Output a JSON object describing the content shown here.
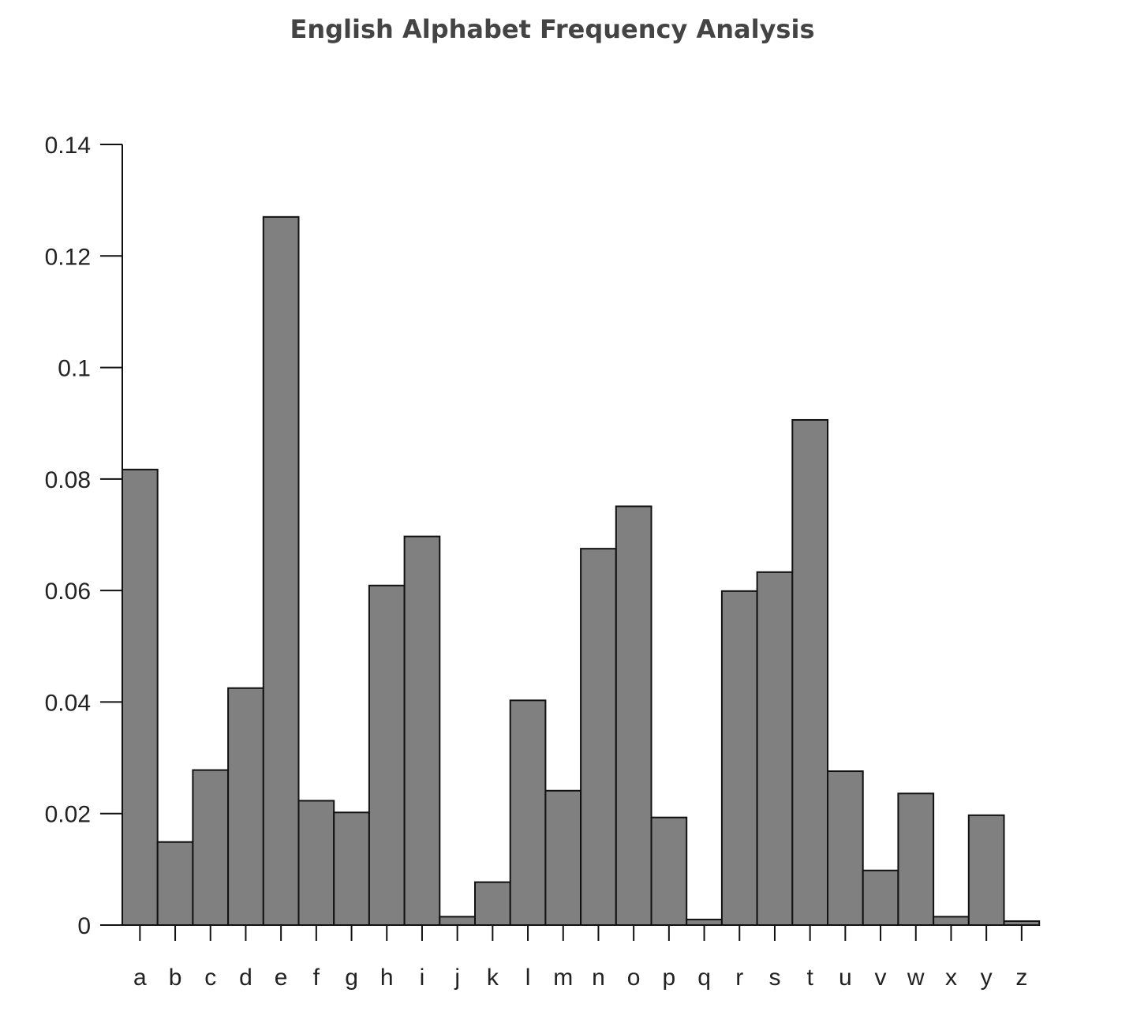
{
  "chart_data": {
    "type": "bar",
    "title": "English Alphabet Frequency Analysis",
    "xlabel": "",
    "ylabel": "",
    "categories": [
      "a",
      "b",
      "c",
      "d",
      "e",
      "f",
      "g",
      "h",
      "i",
      "j",
      "k",
      "l",
      "m",
      "n",
      "o",
      "p",
      "q",
      "r",
      "s",
      "t",
      "u",
      "v",
      "w",
      "x",
      "y",
      "z"
    ],
    "values": [
      0.0817,
      0.0149,
      0.0278,
      0.0425,
      0.127,
      0.0223,
      0.0202,
      0.0609,
      0.0697,
      0.0015,
      0.0077,
      0.0403,
      0.0241,
      0.0675,
      0.0751,
      0.0193,
      0.001,
      0.0599,
      0.0633,
      0.0906,
      0.0276,
      0.0098,
      0.0236,
      0.0015,
      0.0197,
      0.0007
    ],
    "ylim": [
      0,
      0.14
    ],
    "yticks": [
      "0",
      "0.02",
      "0.04",
      "0.06",
      "0.08",
      "0.1",
      "0.12",
      "0.14"
    ],
    "grid": false,
    "colors": {
      "bar_fill": "#808080",
      "bar_stroke": "#111111",
      "axis": "#111111"
    }
  }
}
